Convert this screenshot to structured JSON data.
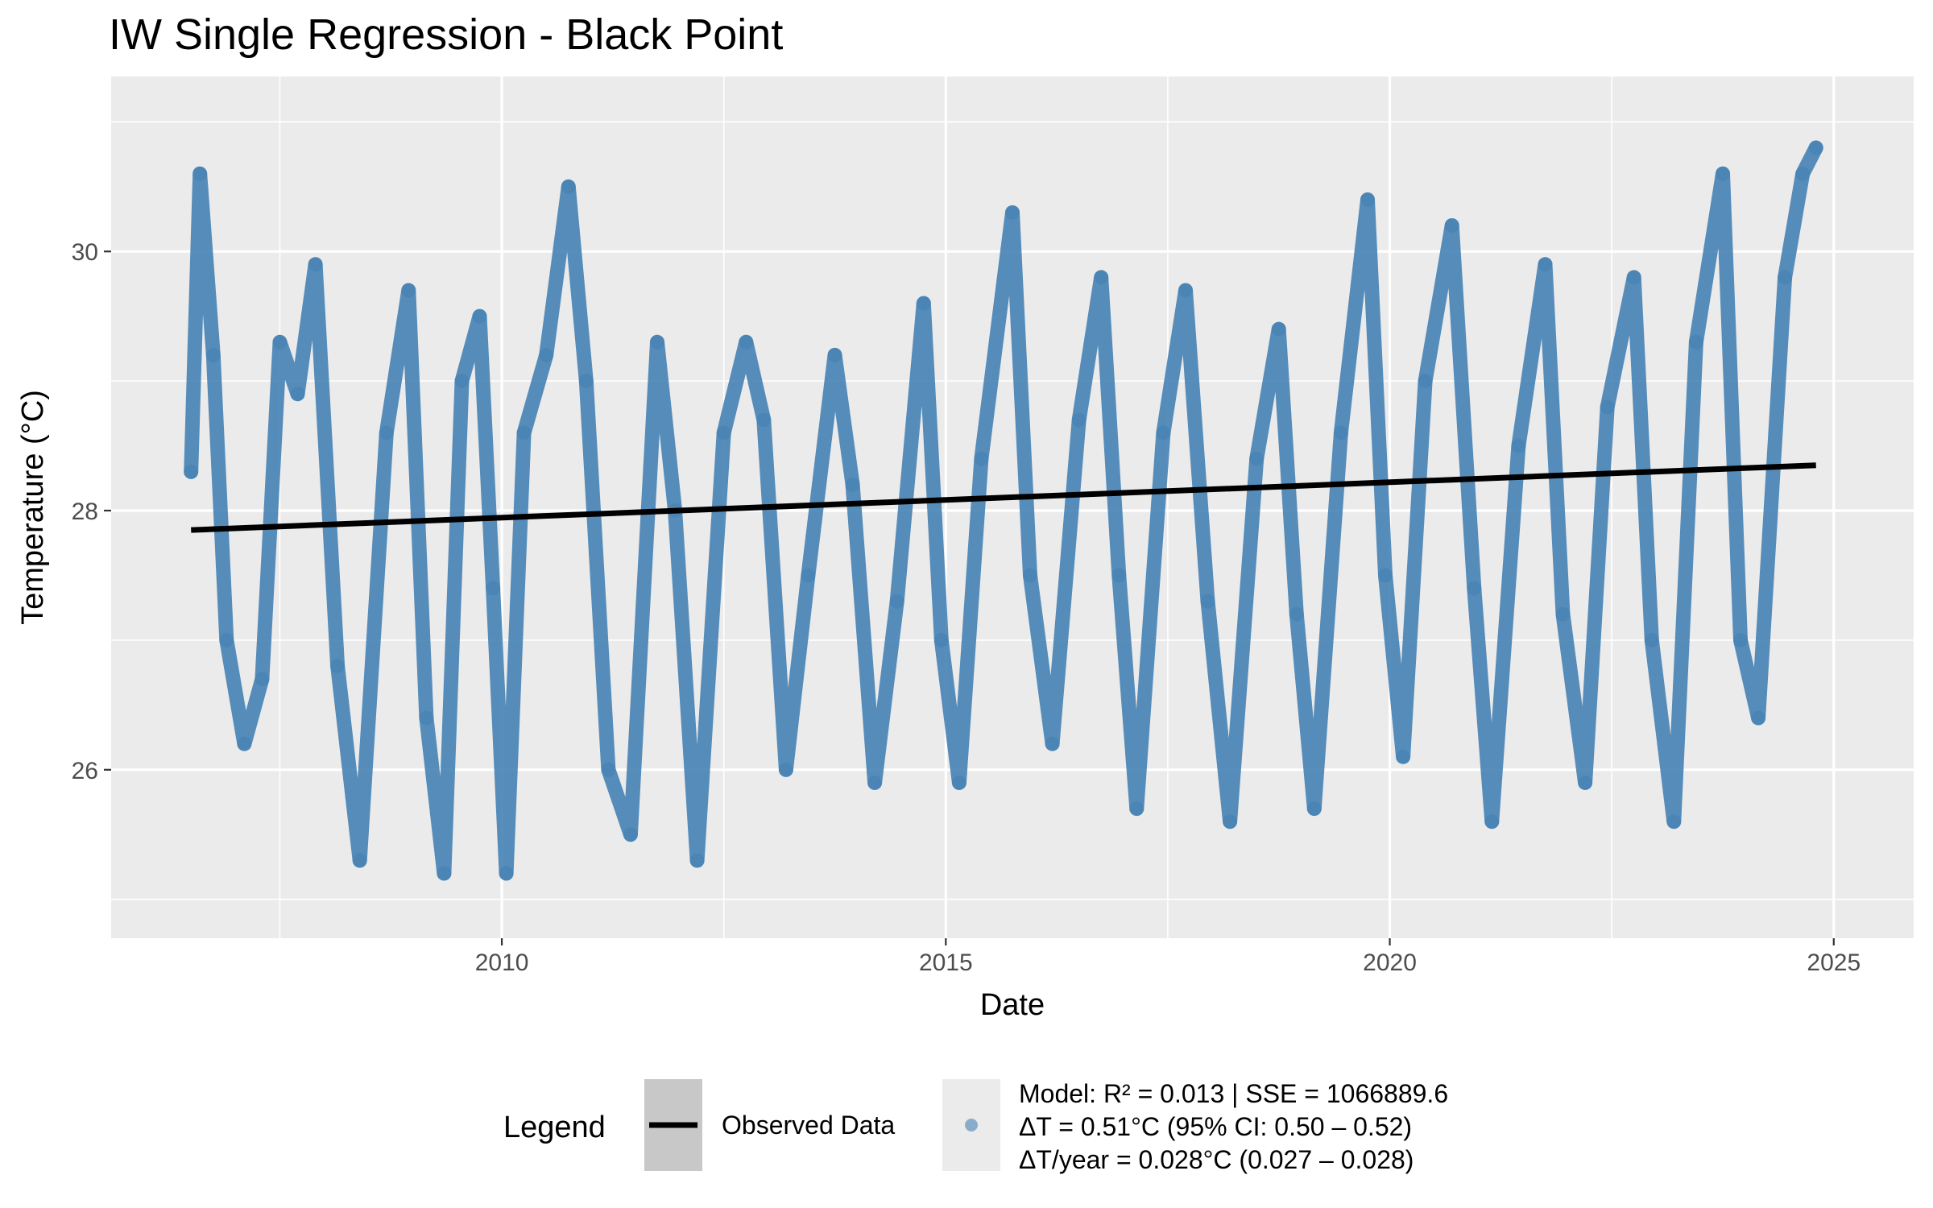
{
  "chart_data": {
    "type": "line",
    "title": "IW Single Regression - Black Point",
    "xlabel": "Date",
    "ylabel": "Temperature (°C)",
    "xlim": [
      2005.6,
      2025.9
    ],
    "ylim": [
      24.7,
      31.35
    ],
    "x_ticks": [
      2010,
      2015,
      2020,
      2025
    ],
    "x_tick_labels": [
      "2010",
      "2015",
      "2020",
      "2025"
    ],
    "y_ticks": [
      26,
      28,
      30
    ],
    "y_tick_labels": [
      "26",
      "28",
      "30"
    ],
    "grid": true,
    "legend_position": "bottom",
    "colors": {
      "observed": "#4682B4",
      "regression": "#000000",
      "panel": "#EBEBEB",
      "grid": "#FFFFFF"
    },
    "legend": {
      "title": "Legend",
      "line_label": "Observed Data",
      "model_lines": [
        "Model: R² = 0.013 | SSE = 1066889.6",
        "ΔT = 0.51°C (95% CI: 0.50 – 0.52)",
        "ΔT/year = 0.028°C (0.027 – 0.028)"
      ]
    },
    "series": [
      {
        "kind": "points",
        "x": [
          2006.5,
          2006.6,
          2006.75,
          2006.9,
          2007.1,
          2007.3,
          2007.5,
          2007.7,
          2007.9,
          2008.15,
          2008.4,
          2008.7,
          2008.95,
          2009.15,
          2009.35,
          2009.55,
          2009.75,
          2009.9,
          2010.05,
          2010.25,
          2010.5,
          2010.75,
          2010.95,
          2011.2,
          2011.45,
          2011.75,
          2011.95,
          2012.2,
          2012.5,
          2012.75,
          2012.95,
          2013.2,
          2013.45,
          2013.75,
          2013.95,
          2014.2,
          2014.45,
          2014.75,
          2014.95,
          2015.15,
          2015.4,
          2015.75,
          2015.95,
          2016.2,
          2016.5,
          2016.75,
          2016.95,
          2017.15,
          2017.45,
          2017.7,
          2017.95,
          2018.2,
          2018.5,
          2018.75,
          2018.95,
          2019.15,
          2019.45,
          2019.75,
          2019.95,
          2020.15,
          2020.4,
          2020.7,
          2020.95,
          2021.15,
          2021.45,
          2021.75,
          2021.95,
          2022.2,
          2022.45,
          2022.75,
          2022.95,
          2023.2,
          2023.45,
          2023.75,
          2023.95,
          2024.15,
          2024.45,
          2024.65,
          2024.8
        ],
        "y": [
          28.3,
          30.6,
          29.2,
          27.0,
          26.2,
          26.7,
          29.3,
          28.9,
          29.9,
          26.8,
          25.3,
          28.6,
          29.7,
          26.4,
          25.2,
          29.0,
          29.5,
          27.4,
          25.2,
          28.6,
          29.2,
          30.5,
          29.0,
          26.0,
          25.5,
          29.3,
          28.0,
          25.3,
          28.6,
          29.3,
          28.7,
          26.0,
          27.5,
          29.2,
          28.2,
          25.9,
          27.3,
          29.6,
          27.0,
          25.9,
          28.4,
          30.3,
          27.5,
          26.2,
          28.7,
          29.8,
          27.5,
          25.7,
          28.6,
          29.7,
          27.3,
          25.6,
          28.4,
          29.4,
          27.2,
          25.7,
          28.6,
          30.4,
          27.5,
          26.1,
          29.0,
          30.2,
          27.4,
          25.6,
          28.5,
          29.9,
          27.2,
          25.9,
          28.8,
          29.8,
          27.0,
          25.6,
          29.3,
          30.6,
          27.0,
          26.4,
          29.8,
          30.6,
          30.8
        ]
      },
      {
        "kind": "line",
        "x": [
          2006.5,
          2024.8
        ],
        "y": [
          27.85,
          28.35
        ]
      }
    ]
  }
}
